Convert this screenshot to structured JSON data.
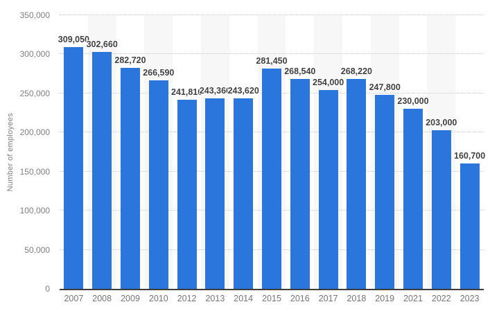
{
  "chart_data": {
    "type": "bar",
    "title": "",
    "xlabel": "",
    "ylabel": "Number of employees",
    "categories": [
      "2007",
      "2008",
      "2009",
      "2010",
      "2012",
      "2013",
      "2014",
      "2015",
      "2016",
      "2017",
      "2018",
      "2019",
      "2021",
      "2022",
      "2023"
    ],
    "values": [
      309050,
      302660,
      282720,
      266590,
      241810,
      243360,
      243620,
      281450,
      268540,
      254000,
      268220,
      247800,
      230000,
      203000,
      160700
    ],
    "value_labels": [
      "309,050",
      "302,660",
      "282,720",
      "266,590",
      "241,810",
      "243,360",
      "243,620",
      "281,450",
      "268,540",
      "254,000",
      "268,220",
      "247,800",
      "230,000",
      "203,000",
      "160,700"
    ],
    "ylim": [
      0,
      350000
    ],
    "yticks": [
      0,
      50000,
      100000,
      150000,
      200000,
      250000,
      300000,
      350000
    ],
    "ytick_labels": [
      "0",
      "50,000",
      "100,000",
      "150,000",
      "200,000",
      "250,000",
      "300,000",
      "350,000"
    ],
    "grid": "horizontal-dotted",
    "legend": "none",
    "colors": {
      "bar": "#2a76dd",
      "band": "#f7f7f7",
      "gridline": "#c9c9c9",
      "baseline": "#3c3c3c",
      "axis_text": "#7f7f7f",
      "value_label_text": "#404040",
      "background": "#ffffff"
    }
  }
}
